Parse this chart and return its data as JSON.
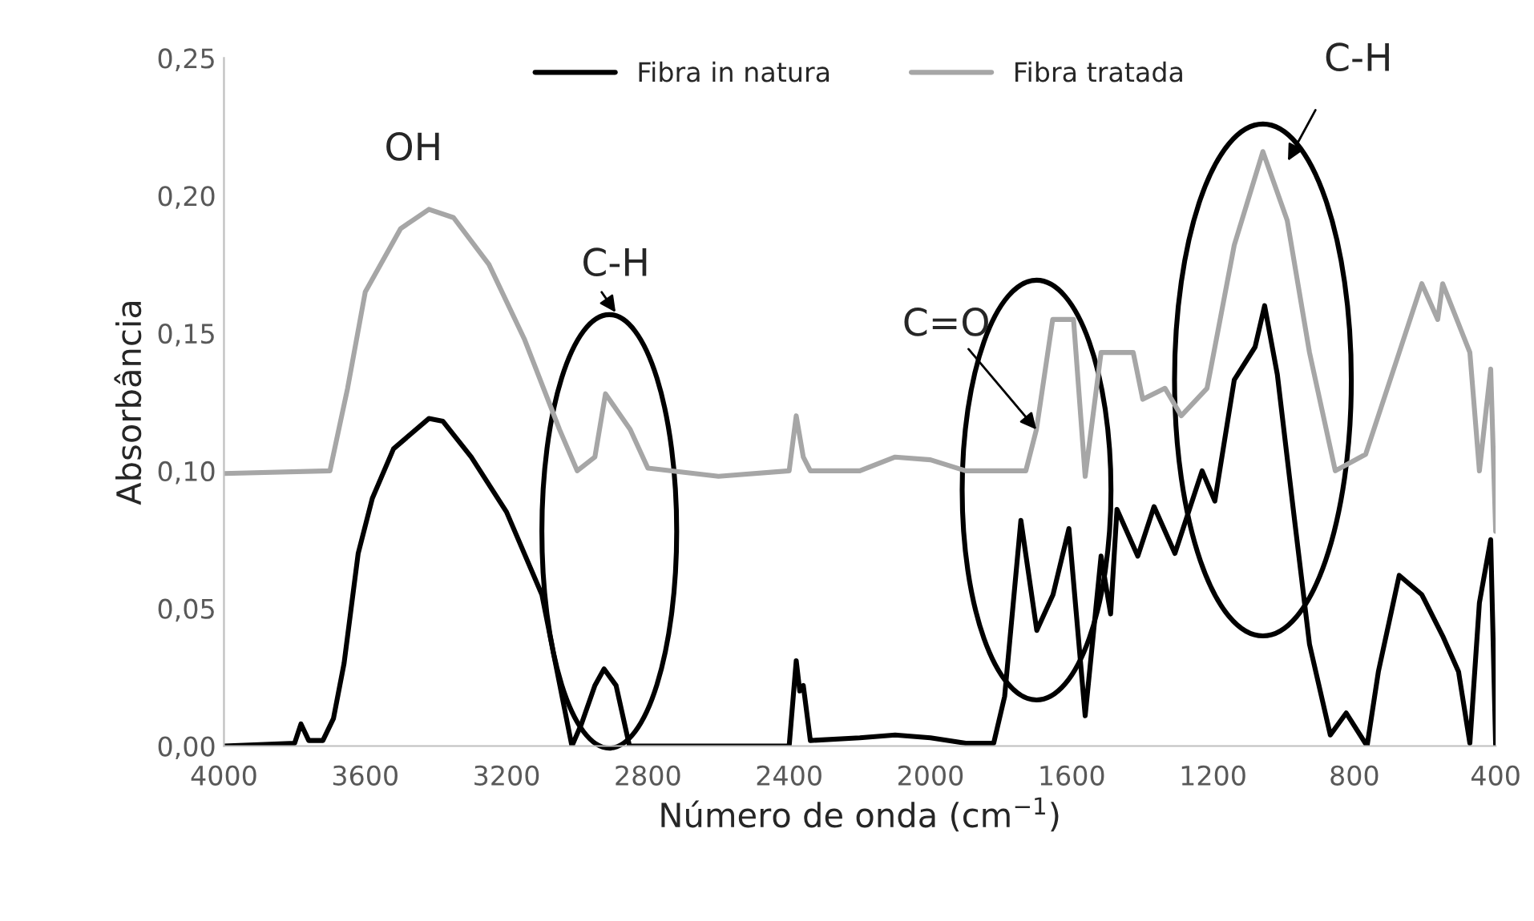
{
  "chart_data": {
    "type": "line",
    "xlabel": "Número de onda (cm$^{−1}$)",
    "ylabel": "Absorbância",
    "xlim": [
      4000,
      400
    ],
    "xticks": [
      4000,
      3600,
      3200,
      2800,
      2400,
      2000,
      1600,
      1200,
      800,
      400
    ],
    "ylim": [
      0,
      0.25
    ],
    "yticks": [
      {
        "value": 0,
        "label": "0,00"
      },
      {
        "value": 0.05,
        "label": "0,05"
      },
      {
        "value": 0.1,
        "label": "0,10"
      },
      {
        "value": 0.15,
        "label": "0,15"
      },
      {
        "value": 0.2,
        "label": "0,20"
      },
      {
        "value": 0.25,
        "label": "0,25"
      }
    ],
    "grid": false,
    "legend": "top",
    "marker": "none",
    "line_style": "solid",
    "series": [
      {
        "name": "Fibra in natura",
        "color": "#000000",
        "x": [
          4000,
          3800,
          3782,
          3760,
          3720,
          3690,
          3660,
          3620,
          3580,
          3520,
          3420,
          3380,
          3300,
          3200,
          3100,
          3015,
          2988,
          2950,
          2924,
          2890,
          2852,
          2600,
          2400,
          2380,
          2370,
          2360,
          2340,
          2200,
          2100,
          2000,
          1900,
          1821,
          1790,
          1744,
          1699,
          1653,
          1608,
          1562,
          1517,
          1490,
          1472,
          1413,
          1367,
          1308,
          1231,
          1195,
          1140,
          1081,
          1054,
          1018,
          972,
          927,
          868,
          823,
          764,
          732,
          673,
          609,
          550,
          505,
          473,
          446,
          414,
          400
        ],
        "values": [
          0,
          0.001,
          0.008,
          0.002,
          0.002,
          0.01,
          0.03,
          0.07,
          0.09,
          0.108,
          0.119,
          0.118,
          0.105,
          0.085,
          0.055,
          0.0,
          0.008,
          0.022,
          0.028,
          0.022,
          0.0,
          0.0,
          0.0,
          0.031,
          0.02,
          0.022,
          0.002,
          0.003,
          0.004,
          0.003,
          0.001,
          0.001,
          0.018,
          0.082,
          0.042,
          0.055,
          0.079,
          0.011,
          0.069,
          0.048,
          0.086,
          0.069,
          0.087,
          0.07,
          0.1,
          0.089,
          0.133,
          0.145,
          0.16,
          0.135,
          0.085,
          0.037,
          0.004,
          0.012,
          0.0,
          0.027,
          0.062,
          0.055,
          0.04,
          0.027,
          0.001,
          0.052,
          0.075,
          0
        ]
      },
      {
        "name": "Fibra tratada",
        "color": "#a6a6a6",
        "x": [
          4000,
          3700,
          3650,
          3600,
          3500,
          3420,
          3350,
          3250,
          3150,
          3050,
          3000,
          2950,
          2920,
          2850,
          2800,
          2600,
          2400,
          2380,
          2360,
          2340,
          2200,
          2100,
          2000,
          1900,
          1800,
          1730,
          1700,
          1654,
          1595,
          1562,
          1540,
          1517,
          1426,
          1399,
          1336,
          1290,
          1217,
          1140,
          1059,
          990,
          927,
          854,
          768,
          673,
          609,
          564,
          550,
          473,
          446,
          414,
          400
        ],
        "values": [
          0.099,
          0.1,
          0.13,
          0.165,
          0.188,
          0.195,
          0.192,
          0.175,
          0.148,
          0.115,
          0.1,
          0.105,
          0.128,
          0.115,
          0.101,
          0.098,
          0.1,
          0.12,
          0.105,
          0.1,
          0.1,
          0.105,
          0.104,
          0.1,
          0.1,
          0.1,
          0.115,
          0.155,
          0.155,
          0.098,
          0.12,
          0.143,
          0.143,
          0.126,
          0.13,
          0.12,
          0.13,
          0.182,
          0.216,
          0.191,
          0.143,
          0.1,
          0.106,
          0.143,
          0.168,
          0.155,
          0.168,
          0.143,
          0.1,
          0.137,
          0.078
        ]
      }
    ],
    "annotations": [
      "OH",
      "C-H",
      {
        "text": "C=O",
        "x": 1700,
        "y": 0.115
      },
      "C-H"
    ]
  }
}
